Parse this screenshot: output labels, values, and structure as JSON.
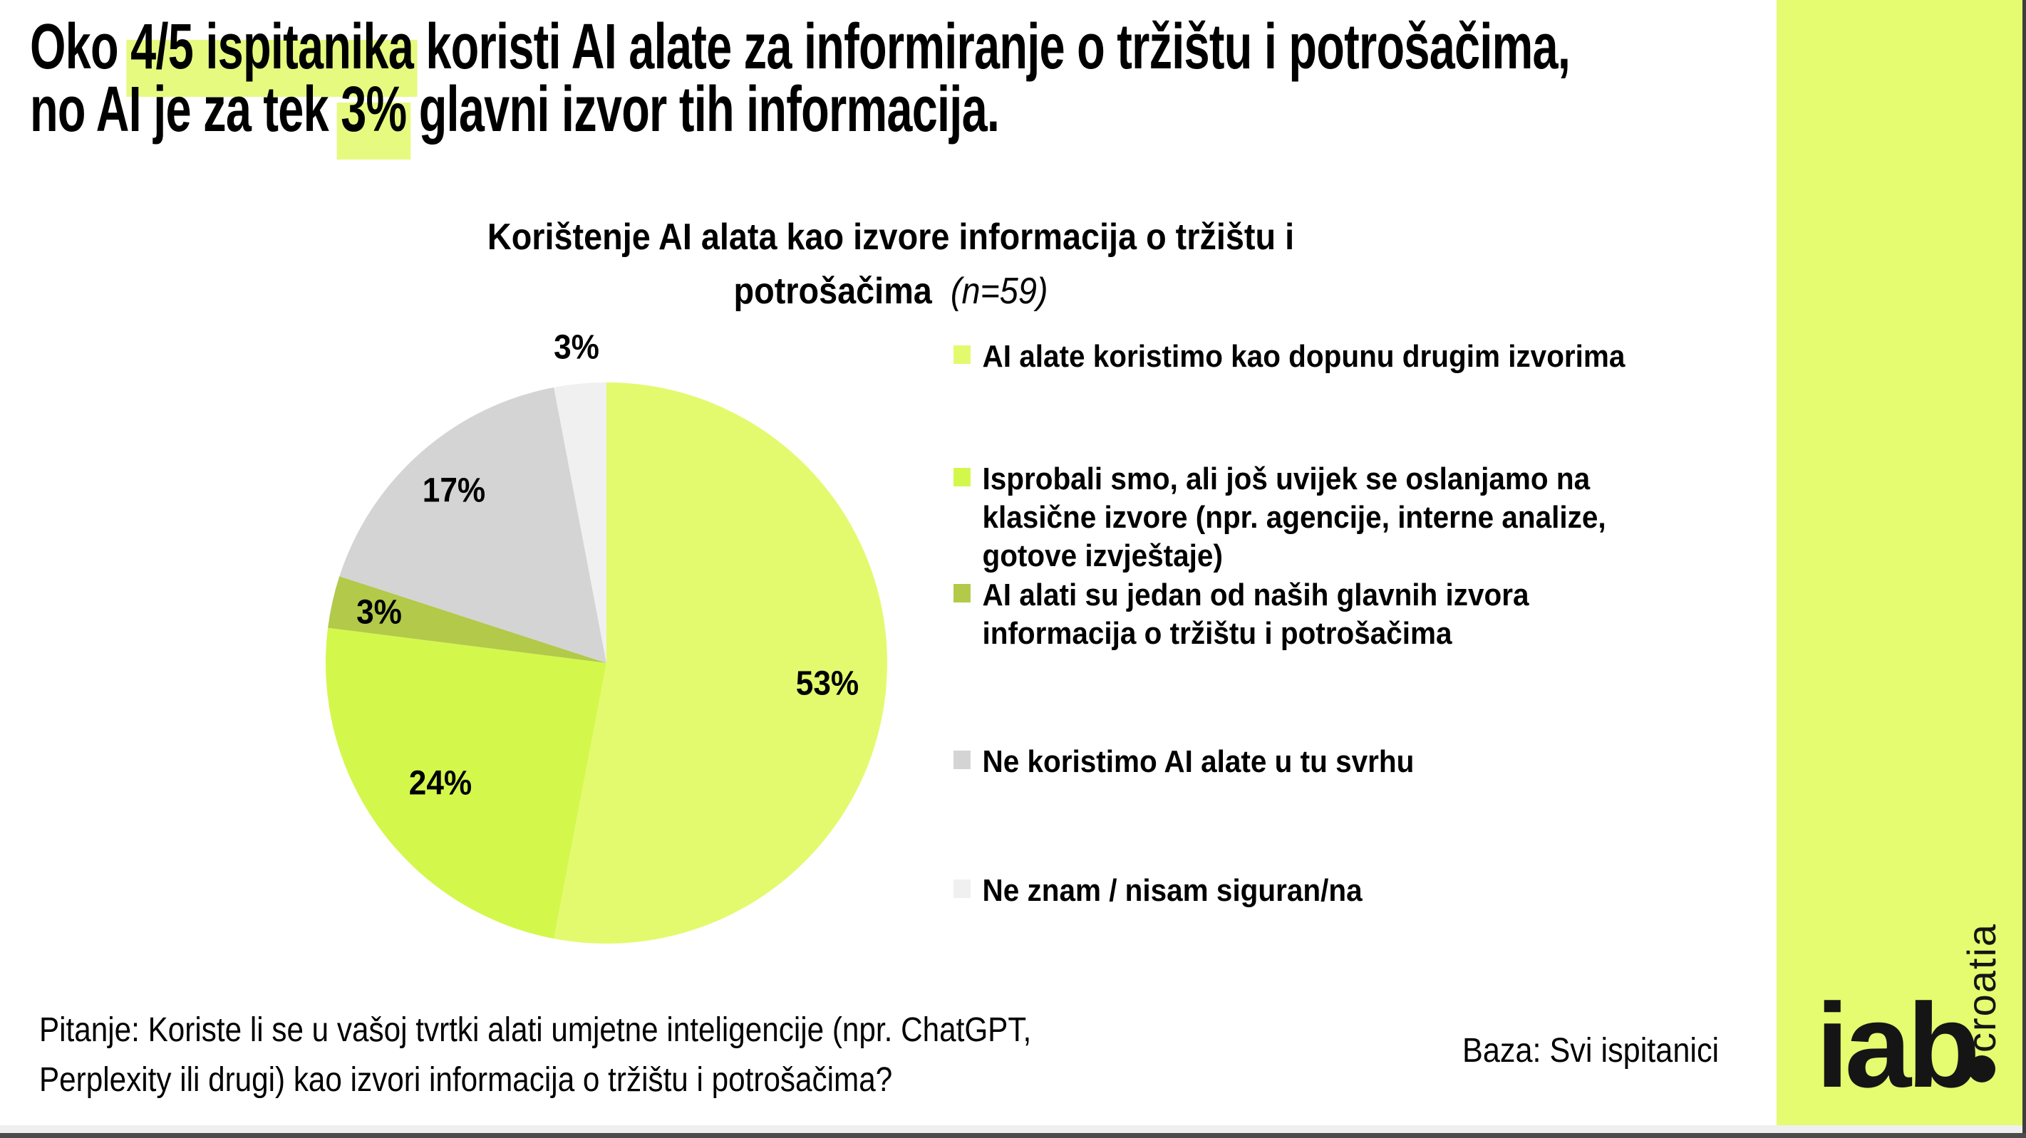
{
  "header": {
    "highlight_color": "#E6FA80",
    "title_lines": [
      {
        "parts": [
          {
            "text": "Oko ",
            "highlight": false
          },
          {
            "text": "4/5 ispitanika",
            "highlight": true
          },
          {
            "text": " koristi AI alate za informiranje o tržištu i potrošačima,",
            "highlight": false
          }
        ]
      },
      {
        "parts": [
          {
            "text": "no AI je za tek ",
            "highlight": false
          },
          {
            "text": "3%",
            "highlight": true
          },
          {
            "text": " glavni izvor tih informacija.",
            "highlight": false
          }
        ]
      }
    ]
  },
  "chart_data": {
    "type": "pie",
    "title": "Korištenje AI alata kao izvore informacija o tržištu i potrošačima",
    "title_lines": [
      "Korištenje AI alata kao izvore informacija o tržištu i",
      "potrošačima"
    ],
    "sample_note": "(n=59)",
    "units": "%",
    "start_angle_deg": 0,
    "direction": "clockwise",
    "legend_position": "right",
    "slices": [
      {
        "label": "AI alate koristimo kao dopunu drugim izvorima",
        "label_lines": [
          "AI alate koristimo kao dopunu drugim izvorima"
        ],
        "value": 53,
        "color": "#E3FA6E"
      },
      {
        "label": "Isprobali smo, ali još uvijek se oslanjamo na klasične izvore (npr. agencije, interne analize, gotove izvještaje)",
        "label_lines": [
          "Isprobali smo, ali još uvijek se oslanjamo na",
          "klasične izvore (npr. agencije, interne analize,",
          "gotove izvještaje)"
        ],
        "value": 24,
        "color": "#D4F74C"
      },
      {
        "label": "AI alati su jedan od naših glavnih izvora informacija o tržištu i potrošačima",
        "label_lines": [
          "AI alati su jedan od naših glavnih izvora",
          "informacija o tržištu i potrošačima"
        ],
        "value": 3,
        "color": "#B2C94A"
      },
      {
        "label": "Ne koristimo AI alate u tu svrhu",
        "label_lines": [
          "Ne koristimo AI alate u tu svrhu"
        ],
        "value": 17,
        "color": "#D4D4D4"
      },
      {
        "label": "Ne znam / nisam siguran/na",
        "label_lines": [
          "Ne znam / nisam siguran/na"
        ],
        "value": 3,
        "color": "#F0F0F0"
      }
    ]
  },
  "footer": {
    "question_lines": [
      "Pitanje: Koriste li se u vašoj tvrtki alati umjetne inteligencije (npr. ChatGPT,",
      "Perplexity ili drugi) kao izvori informacija o tržištu i potrošačima?"
    ],
    "base_note": "Baza: Svi ispitanici"
  },
  "branding": {
    "logo_text": "iab",
    "logo_country": "croatia",
    "sidebar_color": "#E5FB70"
  }
}
